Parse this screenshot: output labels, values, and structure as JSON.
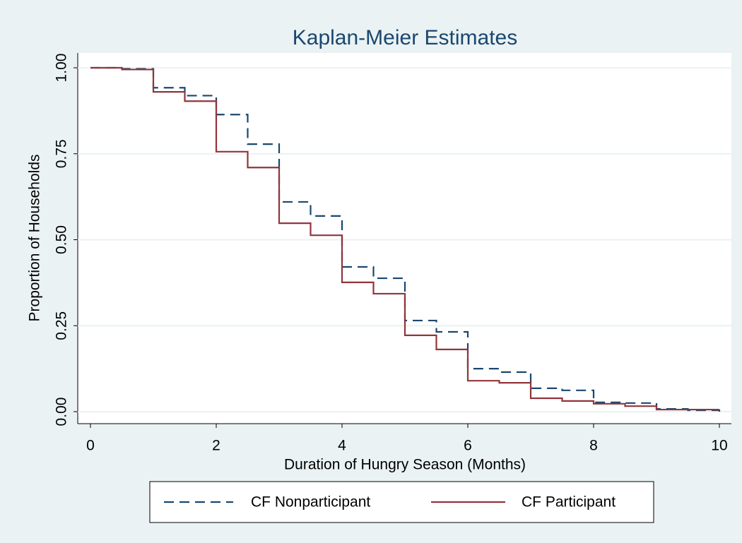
{
  "chart_data": {
    "type": "step",
    "title": "Kaplan-Meier Estimates",
    "x_label": "Duration of Hungry Season (Months)",
    "y_label": "Proportion of Households",
    "x": [
      0,
      0.5,
      1,
      1.5,
      2,
      2.5,
      3,
      3.5,
      4,
      4.5,
      5,
      5.5,
      6,
      6.5,
      7,
      7.5,
      8,
      8.5,
      9,
      9.5,
      10
    ],
    "series": [
      {
        "name": "CF Nonparticipant",
        "color": "#1a476f",
        "line_style": "dashed",
        "values": [
          1.0,
          0.997,
          0.942,
          0.919,
          0.864,
          0.778,
          0.61,
          0.569,
          0.421,
          0.388,
          0.265,
          0.232,
          0.125,
          0.115,
          0.068,
          0.062,
          0.027,
          0.025,
          0.008,
          0.004,
          0.0
        ]
      },
      {
        "name": "CF Participant",
        "color": "#90353b",
        "line_style": "solid",
        "values": [
          1.0,
          0.995,
          0.93,
          0.903,
          0.756,
          0.71,
          0.548,
          0.513,
          0.376,
          0.343,
          0.222,
          0.181,
          0.09,
          0.084,
          0.039,
          0.031,
          0.023,
          0.016,
          0.006,
          0.006,
          0.006
        ]
      }
    ],
    "xlim": [
      0,
      10
    ],
    "xticks": [
      0,
      2,
      4,
      6,
      8,
      10
    ],
    "ylim": [
      0,
      1
    ],
    "yticks": [
      {
        "value": 0,
        "label": "0.00"
      },
      {
        "value": 0.25,
        "label": "0.25"
      },
      {
        "value": 0.5,
        "label": "0.50"
      },
      {
        "value": 0.75,
        "label": "0.75"
      },
      {
        "value": 1,
        "label": "1.00"
      }
    ],
    "grid": true,
    "legend_position": "bottom"
  }
}
